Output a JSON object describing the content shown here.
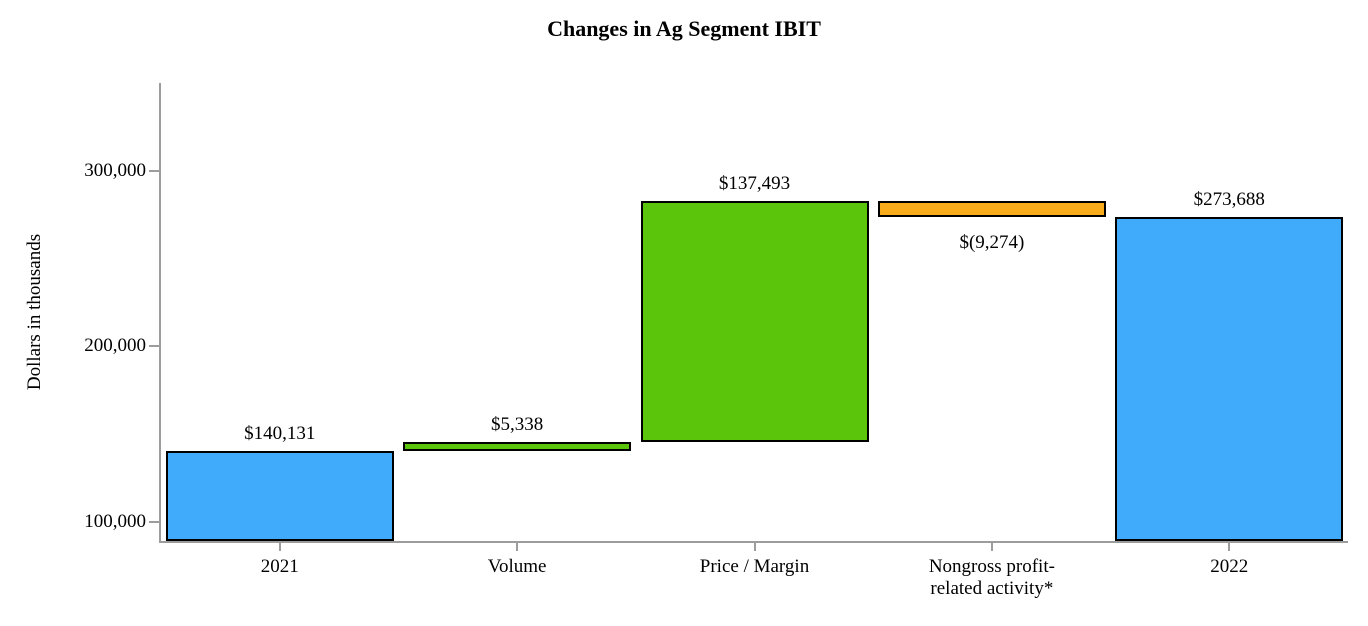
{
  "chart_data": {
    "type": "bar",
    "subtype": "waterfall",
    "title": "Changes in Ag Segment IBIT",
    "xlabel": "",
    "ylabel": "Dollars in thousands",
    "ylim": [
      89000,
      350000
    ],
    "grid": false,
    "legend": false,
    "y_ticks": [
      {
        "value": 100000,
        "label": "100,000"
      },
      {
        "value": 200000,
        "label": "200,000"
      },
      {
        "value": 300000,
        "label": "300,000"
      }
    ],
    "categories": [
      "2021",
      "Volume",
      "Price / Margin",
      "Nongross profit-\nrelated activity*",
      "2022"
    ],
    "colors": {
      "total_bar": "#3fabfa",
      "increase_bar": "#5bc50b",
      "decrease_bar": "#f8ac1c",
      "bar_border": "#000000",
      "axis": "#9c9c9c",
      "text": "#000000"
    },
    "bars": [
      {
        "category": "2021",
        "role": "total",
        "from": null,
        "to": 140131,
        "value": 140131,
        "label": "$140,131",
        "label_position": "above",
        "color": "#3fabfa"
      },
      {
        "category": "Volume",
        "role": "increase",
        "from": 140131,
        "to": 145469,
        "value": 5338,
        "label": "$5,338",
        "label_position": "above",
        "color": "#5bc50b"
      },
      {
        "category": "Price / Margin",
        "role": "increase",
        "from": 145469,
        "to": 282962,
        "value": 137493,
        "label": "$137,493",
        "label_position": "above",
        "color": "#5bc50b"
      },
      {
        "category": "Nongross profit-\nrelated activity*",
        "role": "decrease",
        "from": 282962,
        "to": 273688,
        "value": -9274,
        "label": "$(9,274)",
        "label_position": "below",
        "color": "#f8ac1c"
      },
      {
        "category": "2022",
        "role": "total",
        "from": null,
        "to": 273688,
        "value": 273688,
        "label": "$273,688",
        "label_position": "above",
        "color": "#3fabfa"
      }
    ]
  }
}
